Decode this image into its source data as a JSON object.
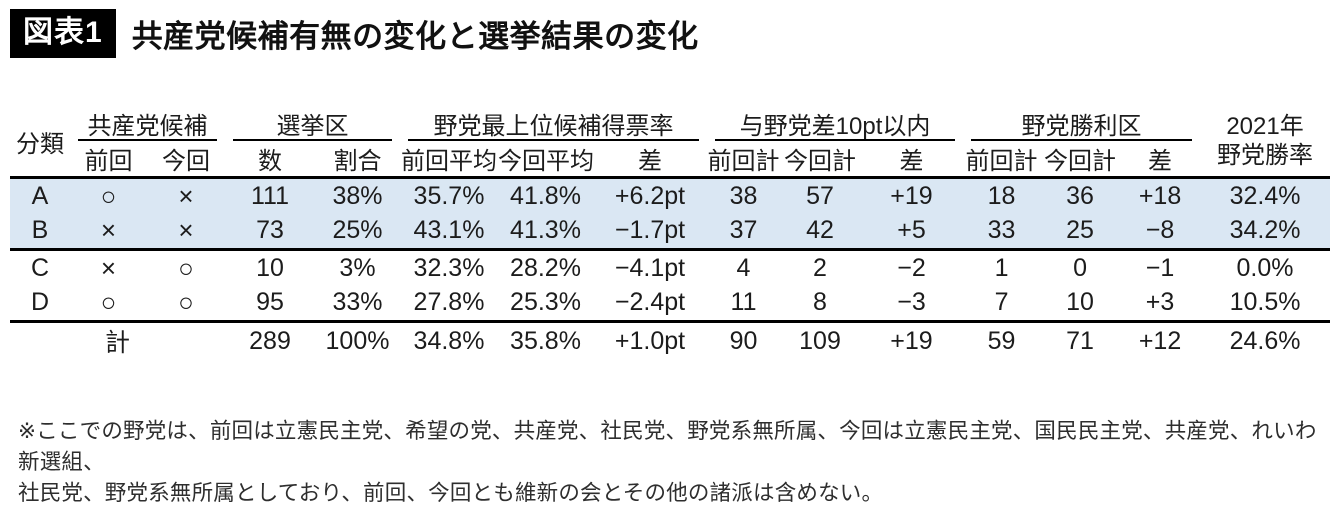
{
  "figure": {
    "tag": "図表1",
    "title": "共産党候補有無の変化と選挙結果の変化"
  },
  "chart_data": {
    "type": "table",
    "title": "共産党候補有無の変化と選挙結果の変化",
    "column_groups": [
      {
        "label": "分類",
        "sub": []
      },
      {
        "label": "共産党候補",
        "sub": [
          "前回",
          "今回"
        ]
      },
      {
        "label": "選挙区",
        "sub": [
          "数",
          "割合"
        ]
      },
      {
        "label": "野党最上位候補得票率",
        "sub": [
          "前回平均",
          "今回平均",
          "差"
        ]
      },
      {
        "label": "与野党差10pt以内",
        "sub": [
          "前回計",
          "今回計",
          "差"
        ]
      },
      {
        "label": "野党勝利区",
        "sub": [
          "前回計",
          "今回計",
          "差"
        ]
      },
      {
        "label": "2021年野党勝率",
        "sub": []
      }
    ],
    "rows": [
      {
        "label": "A",
        "highlight": true,
        "cells": [
          "○",
          "×",
          "111",
          "38%",
          "35.7%",
          "41.8%",
          "+6.2pt",
          "38",
          "57",
          "+19",
          "18",
          "36",
          "+18",
          "32.4%"
        ]
      },
      {
        "label": "B",
        "highlight": true,
        "cells": [
          "×",
          "×",
          "73",
          "25%",
          "43.1%",
          "41.3%",
          "−1.7pt",
          "37",
          "42",
          "+5",
          "33",
          "25",
          "−8",
          "34.2%"
        ]
      },
      {
        "label": "C",
        "highlight": false,
        "cells": [
          "×",
          "○",
          "10",
          "3%",
          "32.3%",
          "28.2%",
          "−4.1pt",
          "4",
          "2",
          "−2",
          "1",
          "0",
          "−1",
          "0.0%"
        ]
      },
      {
        "label": "D",
        "highlight": false,
        "cells": [
          "○",
          "○",
          "95",
          "33%",
          "27.8%",
          "25.3%",
          "−2.4pt",
          "11",
          "8",
          "−3",
          "7",
          "10",
          "+3",
          "10.5%"
        ]
      }
    ],
    "total_row": {
      "label": "計",
      "cells": [
        "289",
        "100%",
        "34.8%",
        "35.8%",
        "+1.0pt",
        "90",
        "109",
        "+19",
        "59",
        "71",
        "+12",
        "24.6%"
      ]
    }
  },
  "table": {
    "header": {
      "class_col": "分類",
      "groups": [
        {
          "label": "共産党候補",
          "sub": [
            "前回",
            "今回"
          ]
        },
        {
          "label": "選挙区",
          "sub": [
            "数",
            "割合"
          ]
        },
        {
          "label": "野党最上位候補得票率",
          "sub": [
            "前回平均",
            "今回平均",
            "差"
          ]
        },
        {
          "label": "与野党差10pt以内",
          "sub": [
            "前回計",
            "今回計",
            "差"
          ]
        },
        {
          "label": "野党勝利区",
          "sub": [
            "前回計",
            "今回計",
            "差"
          ]
        }
      ],
      "year_col": {
        "line1": "2021年",
        "line2": "野党勝率"
      }
    }
  },
  "footnote": {
    "line1": "※ここでの野党は、前回は立憲民主党、希望の党、共産党、社民党、野党系無所属、今回は立憲民主党、国民民主党、共産党、れいわ新選組、",
    "line2": "社民党、野党系無所属としており、前回、今回とも維新の会とその他の諸派は含めない。"
  },
  "colors": {
    "highlight_row_bg": "#dae7f3",
    "tag_bg": "#000000",
    "tag_text": "#ffffff",
    "rule": "#000000",
    "text": "#1c1c1c"
  }
}
